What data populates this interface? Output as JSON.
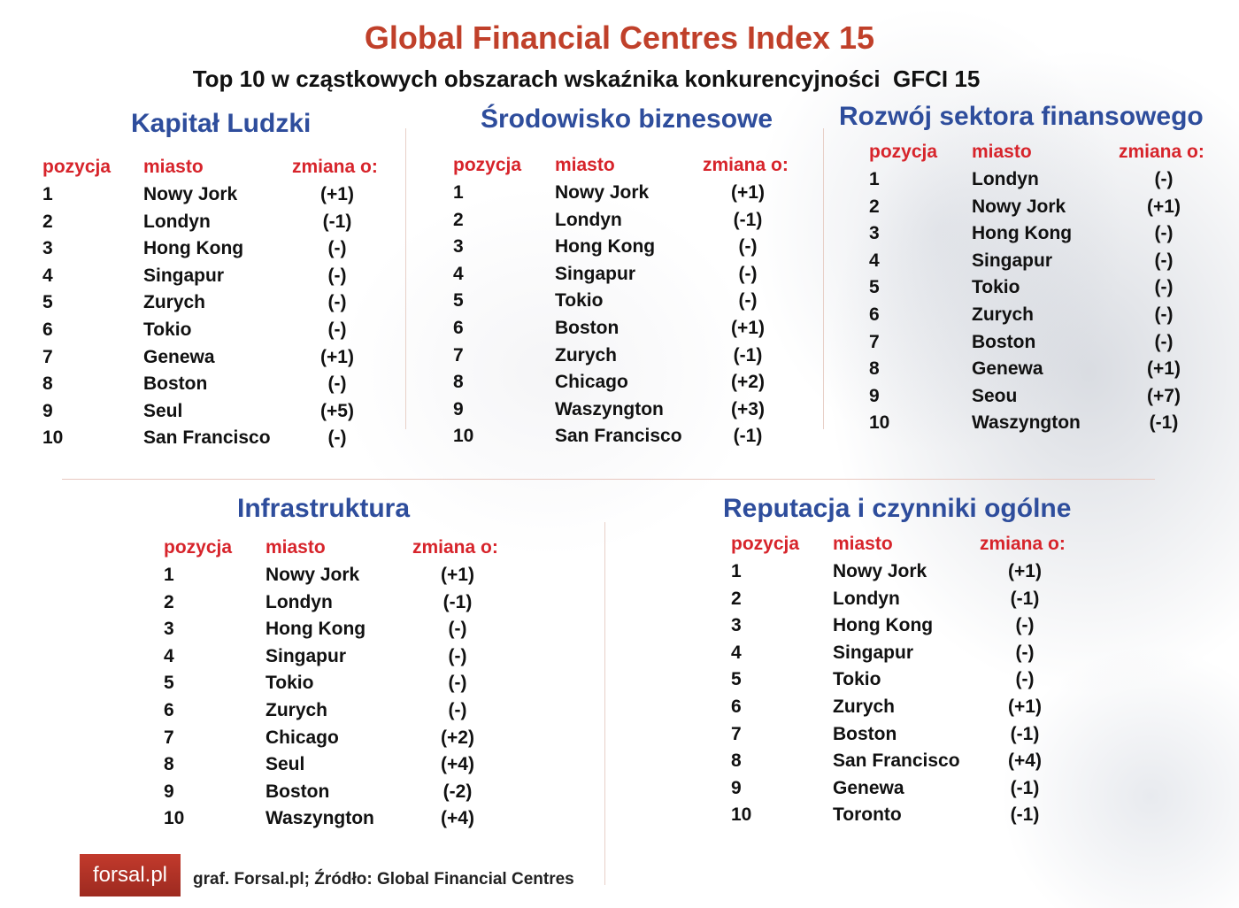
{
  "title": "Global Financial Centres Index 15",
  "subtitle": "Top 10 w cząstkowych obszarach wskaźnika konkurencyjności  GFCI 15",
  "headers": {
    "pos": "pozycja",
    "city": "miasto",
    "change": "zmiana o:"
  },
  "sections": [
    {
      "title": "Kapitał Ludzki",
      "rows": [
        {
          "pos": "1",
          "city": "Nowy Jork",
          "change": "(+1)"
        },
        {
          "pos": "2",
          "city": "Londyn",
          "change": "(-1)"
        },
        {
          "pos": "3",
          "city": "Hong Kong",
          "change": "(-)"
        },
        {
          "pos": "4",
          "city": "Singapur",
          "change": "(-)"
        },
        {
          "pos": "5",
          "city": "Zurych",
          "change": "(-)"
        },
        {
          "pos": "6",
          "city": "Tokio",
          "change": "(-)"
        },
        {
          "pos": "7",
          "city": "Genewa",
          "change": "(+1)"
        },
        {
          "pos": "8",
          "city": "Boston",
          "change": "(-)"
        },
        {
          "pos": "9",
          "city": "Seul",
          "change": "(+5)"
        },
        {
          "pos": "10",
          "city": "San Francisco",
          "change": "(-)"
        }
      ]
    },
    {
      "title": "Środowisko biznesowe",
      "rows": [
        {
          "pos": "1",
          "city": "Nowy Jork",
          "change": "(+1)"
        },
        {
          "pos": "2",
          "city": "Londyn",
          "change": "(-1)"
        },
        {
          "pos": "3",
          "city": "Hong Kong",
          "change": "(-)"
        },
        {
          "pos": "4",
          "city": "Singapur",
          "change": "(-)"
        },
        {
          "pos": "5",
          "city": "Tokio",
          "change": "(-)"
        },
        {
          "pos": "6",
          "city": "Boston",
          "change": "(+1)"
        },
        {
          "pos": "7",
          "city": "Zurych",
          "change": "(-1)"
        },
        {
          "pos": "8",
          "city": "Chicago",
          "change": "(+2)"
        },
        {
          "pos": "9",
          "city": "Waszyngton",
          "change": "(+3)"
        },
        {
          "pos": "10",
          "city": "San Francisco",
          "change": "(-1)"
        }
      ]
    },
    {
      "title": "Rozwój sektora finansowego",
      "rows": [
        {
          "pos": "1",
          "city": "Londyn",
          "change": "(-)"
        },
        {
          "pos": "2",
          "city": "Nowy Jork",
          "change": "(+1)"
        },
        {
          "pos": "3",
          "city": "Hong Kong",
          "change": "(-)"
        },
        {
          "pos": "4",
          "city": "Singapur",
          "change": "(-)"
        },
        {
          "pos": "5",
          "city": "Tokio",
          "change": "(-)"
        },
        {
          "pos": "6",
          "city": "Zurych",
          "change": "(-)"
        },
        {
          "pos": "7",
          "city": "Boston",
          "change": "(-)"
        },
        {
          "pos": "8",
          "city": "Genewa",
          "change": "(+1)"
        },
        {
          "pos": "9",
          "city": "Seou",
          "change": "(+7)"
        },
        {
          "pos": "10",
          "city": "Waszyngton",
          "change": "(-1)"
        }
      ]
    },
    {
      "title": "Infrastruktura",
      "rows": [
        {
          "pos": "1",
          "city": "Nowy Jork",
          "change": "(+1)"
        },
        {
          "pos": "2",
          "city": "Londyn",
          "change": "(-1)"
        },
        {
          "pos": "3",
          "city": "Hong Kong",
          "change": "(-)"
        },
        {
          "pos": "4",
          "city": "Singapur",
          "change": "(-)"
        },
        {
          "pos": "5",
          "city": "Tokio",
          "change": "(-)"
        },
        {
          "pos": "6",
          "city": "Zurych",
          "change": "(-)"
        },
        {
          "pos": "7",
          "city": "Chicago",
          "change": "(+2)"
        },
        {
          "pos": "8",
          "city": "Seul",
          "change": "(+4)"
        },
        {
          "pos": "9",
          "city": "Boston",
          "change": "(-2)"
        },
        {
          "pos": "10",
          "city": "Waszyngton",
          "change": "(+4)"
        }
      ]
    },
    {
      "title": "Reputacja i czynniki ogólne",
      "rows": [
        {
          "pos": "1",
          "city": "Nowy Jork",
          "change": "(+1)"
        },
        {
          "pos": "2",
          "city": "Londyn",
          "change": "(-1)"
        },
        {
          "pos": "3",
          "city": "Hong Kong",
          "change": "(-)"
        },
        {
          "pos": "4",
          "city": "Singapur",
          "change": "(-)"
        },
        {
          "pos": "5",
          "city": "Tokio",
          "change": "(-)"
        },
        {
          "pos": "6",
          "city": "Zurych",
          "change": "(+1)"
        },
        {
          "pos": "7",
          "city": "Boston",
          "change": "(-1)"
        },
        {
          "pos": "8",
          "city": "San Francisco",
          "change": "(+4)"
        },
        {
          "pos": "9",
          "city": "Genewa",
          "change": "(-1)"
        },
        {
          "pos": "10",
          "city": "Toronto",
          "change": "(-1)"
        }
      ]
    }
  ],
  "logo_text": "forsal.pl",
  "source": "graf. Forsal.pl; Źródło: Global Financial Centres",
  "colors": {
    "title": "#c0402a",
    "section_title": "#2e4d9c",
    "header": "#d7242b",
    "logo_bg": "#b2332a"
  }
}
